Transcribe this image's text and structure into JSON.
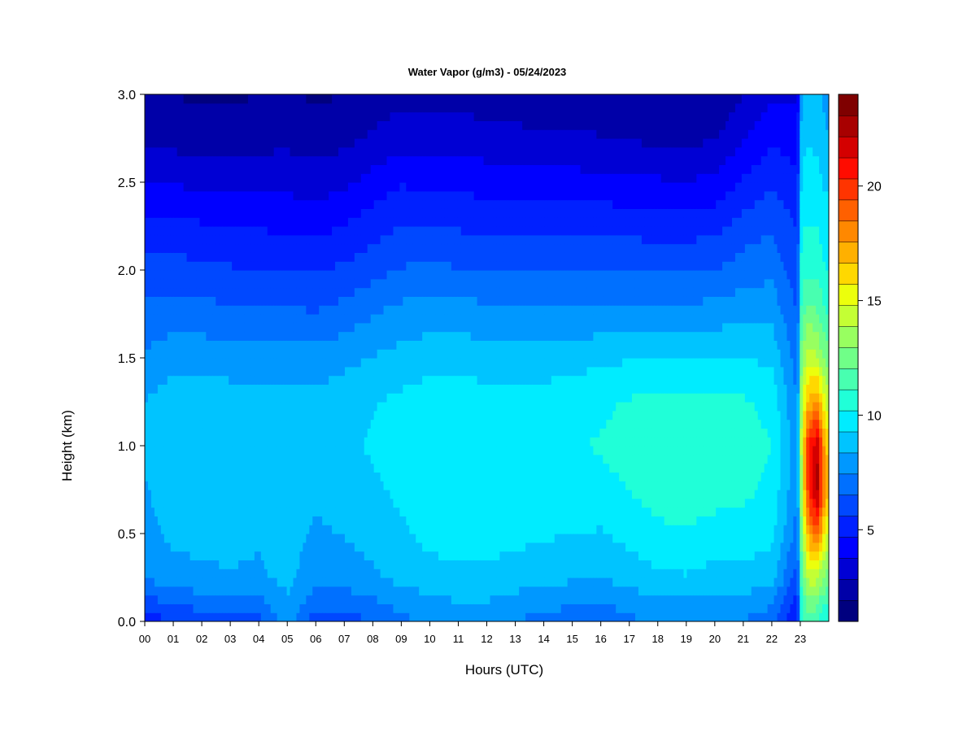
{
  "chart_data": {
    "type": "heatmap",
    "title": "Water Vapor (g/m3) - 05/24/2023",
    "xlabel": "Hours (UTC)",
    "ylabel": "Height (km)",
    "xlim": [
      0,
      24
    ],
    "ylim": [
      0,
      3
    ],
    "x_tick_labels": [
      "00",
      "01",
      "02",
      "03",
      "04",
      "05",
      "06",
      "07",
      "08",
      "09",
      "10",
      "11",
      "12",
      "13",
      "14",
      "15",
      "16",
      "17",
      "18",
      "19",
      "20",
      "21",
      "22",
      "23"
    ],
    "y_tick_labels": [
      "0.0",
      "0.5",
      "1.0",
      "1.5",
      "2.0",
      "2.5",
      "3.0"
    ],
    "y_ticks": [
      0,
      0.5,
      1.0,
      1.5,
      2.0,
      2.5,
      3.0
    ],
    "colorbar": {
      "range": [
        1,
        24
      ],
      "ticks": [
        5,
        10,
        15,
        20
      ],
      "tick_labels": [
        "5",
        "10",
        "15",
        "20"
      ],
      "colors": [
        "#00007f",
        "#0000a8",
        "#0000d4",
        "#0000ff",
        "#0020ff",
        "#0048ff",
        "#0070ff",
        "#0098ff",
        "#00c4ff",
        "#00ecff",
        "#20ffd8",
        "#48ffb0",
        "#70ff88",
        "#98ff60",
        "#c4ff34",
        "#ecff0c",
        "#ffd800",
        "#ffb000",
        "#ff8800",
        "#ff6000",
        "#ff3400",
        "#ff0c00",
        "#d40000",
        "#a80000",
        "#7f0000"
      ]
    },
    "columns_hours": [
      0,
      1,
      2,
      3,
      4,
      5,
      6,
      7,
      8,
      9,
      10,
      11,
      12,
      13,
      14,
      15,
      16,
      17,
      18,
      19,
      20,
      21,
      22,
      22.9,
      23.05,
      23.3,
      23.6,
      23.9
    ],
    "heights_km": [
      0.0,
      0.25,
      0.5,
      0.75,
      1.0,
      1.25,
      1.5,
      1.75,
      2.0,
      2.25,
      2.5,
      2.75,
      3.0
    ],
    "values_gm3": [
      [
        5.2,
        7.5,
        8.0,
        8.3,
        8.6,
        8.4,
        7.6,
        6.8,
        5.9,
        5.0,
        3.8,
        2.6,
        2.0
      ],
      [
        5.5,
        8.0,
        8.6,
        8.8,
        9.0,
        8.9,
        8.0,
        7.0,
        6.0,
        5.0,
        3.7,
        2.5,
        1.9
      ],
      [
        6.0,
        8.2,
        8.6,
        8.8,
        9.0,
        8.9,
        8.0,
        6.9,
        5.8,
        4.8,
        3.5,
        2.4,
        1.8
      ],
      [
        6.2,
        8.3,
        8.6,
        8.8,
        9.0,
        8.8,
        7.9,
        6.8,
        5.7,
        4.7,
        3.5,
        2.4,
        1.8
      ],
      [
        6.2,
        8.2,
        8.5,
        8.7,
        8.9,
        8.7,
        7.8,
        6.8,
        5.7,
        4.6,
        3.5,
        2.5,
        1.9
      ],
      [
        8.0,
        8.6,
        8.8,
        9.0,
        9.1,
        8.9,
        7.8,
        6.7,
        5.6,
        4.5,
        3.5,
        2.6,
        2.0
      ],
      [
        6.0,
        7.8,
        8.2,
        8.6,
        8.9,
        8.7,
        7.8,
        6.6,
        5.5,
        4.4,
        3.3,
        2.4,
        1.8
      ],
      [
        6.1,
        7.9,
        8.4,
        8.8,
        9.1,
        8.9,
        8.1,
        6.9,
        5.8,
        4.7,
        3.6,
        2.6,
        1.9
      ],
      [
        6.5,
        8.2,
        8.7,
        9.1,
        9.4,
        9.2,
        8.4,
        7.4,
        6.2,
        5.2,
        4.1,
        3.0,
        2.2
      ],
      [
        7.2,
        8.6,
        9.1,
        9.5,
        9.8,
        9.5,
        8.7,
        7.8,
        6.6,
        5.6,
        4.6,
        3.4,
        2.6
      ],
      [
        7.5,
        8.9,
        9.6,
        9.9,
        10.1,
        9.8,
        8.9,
        7.9,
        6.7,
        5.6,
        4.5,
        3.4,
        2.6
      ],
      [
        7.8,
        9.0,
        9.7,
        10.0,
        10.1,
        9.8,
        8.9,
        7.9,
        6.6,
        5.5,
        4.4,
        3.3,
        2.5
      ],
      [
        7.7,
        9.1,
        9.6,
        9.9,
        10.0,
        9.7,
        8.8,
        7.8,
        6.5,
        5.4,
        4.3,
        3.2,
        2.4
      ],
      [
        7.4,
        8.8,
        9.6,
        9.9,
        10.0,
        9.7,
        8.8,
        7.7,
        6.5,
        5.4,
        4.3,
        3.1,
        2.3
      ],
      [
        7.1,
        8.6,
        9.4,
        9.8,
        10.0,
        9.7,
        8.8,
        7.6,
        6.4,
        5.3,
        4.2,
        3.0,
        2.2
      ],
      [
        6.9,
        8.5,
        9.3,
        9.8,
        10.1,
        9.8,
        8.9,
        7.6,
        6.4,
        5.3,
        4.1,
        3.0,
        2.2
      ],
      [
        6.7,
        8.4,
        9.2,
        9.9,
        10.3,
        10.0,
        9.1,
        7.7,
        6.4,
        5.3,
        4.1,
        2.9,
        2.1
      ],
      [
        7.2,
        8.7,
        9.6,
        10.2,
        10.6,
        10.3,
        9.2,
        7.8,
        6.4,
        5.3,
        4.0,
        2.8,
        2.0
      ],
      [
        7.6,
        9.1,
        10.0,
        10.6,
        10.9,
        10.5,
        9.3,
        7.8,
        6.4,
        5.2,
        3.9,
        2.6,
        1.9
      ],
      [
        7.5,
        9.2,
        10.1,
        10.7,
        11.0,
        10.5,
        9.3,
        7.8,
        6.4,
        5.2,
        3.8,
        2.6,
        1.9
      ],
      [
        7.3,
        8.9,
        9.9,
        10.5,
        10.8,
        10.4,
        9.3,
        7.9,
        6.5,
        5.3,
        4.0,
        2.8,
        2.0
      ],
      [
        7.4,
        8.9,
        9.8,
        10.4,
        10.7,
        10.3,
        9.3,
        8.1,
        7.0,
        6.0,
        4.8,
        3.7,
        2.8
      ],
      [
        6.8,
        8.7,
        9.6,
        10.0,
        10.2,
        9.9,
        9.1,
        8.1,
        7.2,
        6.4,
        5.5,
        4.5,
        3.6
      ],
      [
        4.5,
        6.0,
        7.0,
        7.5,
        7.6,
        7.4,
        7.0,
        6.5,
        6.0,
        5.5,
        4.9,
        4.2,
        3.6
      ],
      [
        10.8,
        11.8,
        13.0,
        14.0,
        14.6,
        14.2,
        13.0,
        11.8,
        10.8,
        10.2,
        9.6,
        9.0,
        8.5
      ],
      [
        11.5,
        14.5,
        17.5,
        20.5,
        20.8,
        17.0,
        14.5,
        12.5,
        11.0,
        10.2,
        9.8,
        9.2,
        8.8
      ],
      [
        11.0,
        14.0,
        19.0,
        22.5,
        22.0,
        17.5,
        14.0,
        12.0,
        10.8,
        10.2,
        9.6,
        9.0,
        8.6
      ],
      [
        10.0,
        12.5,
        15.0,
        17.0,
        16.5,
        14.5,
        12.5,
        11.2,
        10.2,
        9.7,
        9.1,
        8.5,
        8.0
      ]
    ]
  }
}
